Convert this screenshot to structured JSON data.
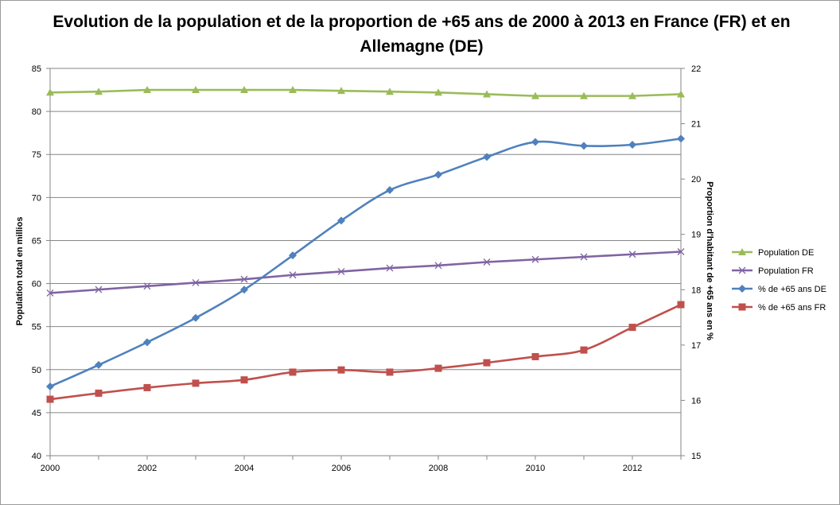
{
  "chart_data": {
    "type": "line",
    "title": "Evolution de la population et de la proportion de +65 ans de 2000 à 2013 en France (FR) et en Allemagne (DE)",
    "x": [
      2000,
      2001,
      2002,
      2003,
      2004,
      2005,
      2006,
      2007,
      2008,
      2009,
      2010,
      2011,
      2012,
      2013
    ],
    "x_ticks": [
      "2000",
      "2002",
      "2004",
      "2006",
      "2008",
      "2010",
      "2012"
    ],
    "xlim": [
      2000,
      2013
    ],
    "ylabel_left": "Population total en millios",
    "ylabel_right": "Proportion d'habitant de +65 ans en %",
    "ylim_left": [
      40,
      85
    ],
    "yticks_left": [
      "40",
      "45",
      "50",
      "55",
      "60",
      "65",
      "70",
      "75",
      "80",
      "85"
    ],
    "ylim_right": [
      15,
      22
    ],
    "yticks_right": [
      "15",
      "16",
      "17",
      "18",
      "19",
      "20",
      "21",
      "22"
    ],
    "grid": "horizontal",
    "legend_position": "right",
    "series": [
      {
        "name": "Population DE",
        "axis": "left",
        "color": "#9bbb59",
        "marker": "triangle",
        "smooth": false,
        "values": [
          82.2,
          82.3,
          82.5,
          82.5,
          82.5,
          82.5,
          82.4,
          82.3,
          82.2,
          82.0,
          81.8,
          81.8,
          81.8,
          82.0
        ]
      },
      {
        "name": "Population FR",
        "axis": "left",
        "color": "#8064a2",
        "marker": "x",
        "smooth": false,
        "values": [
          58.9,
          59.3,
          59.7,
          60.1,
          60.5,
          61.0,
          61.4,
          61.8,
          62.1,
          62.5,
          62.8,
          63.1,
          63.4,
          63.7
        ]
      },
      {
        "name": "% de +65 ans DE",
        "axis": "right",
        "color": "#4f81bd",
        "marker": "diamond",
        "smooth": true,
        "values": [
          16.25,
          16.64,
          17.05,
          17.49,
          18.0,
          18.62,
          19.25,
          19.8,
          20.08,
          20.4,
          20.67,
          20.6,
          20.62,
          20.73
        ]
      },
      {
        "name": "% de +65 ans FR",
        "axis": "right",
        "color": "#c0504d",
        "marker": "square",
        "smooth": true,
        "values": [
          16.02,
          16.13,
          16.23,
          16.31,
          16.37,
          16.51,
          16.55,
          16.51,
          16.58,
          16.68,
          16.79,
          16.91,
          17.32,
          17.73
        ]
      }
    ]
  }
}
